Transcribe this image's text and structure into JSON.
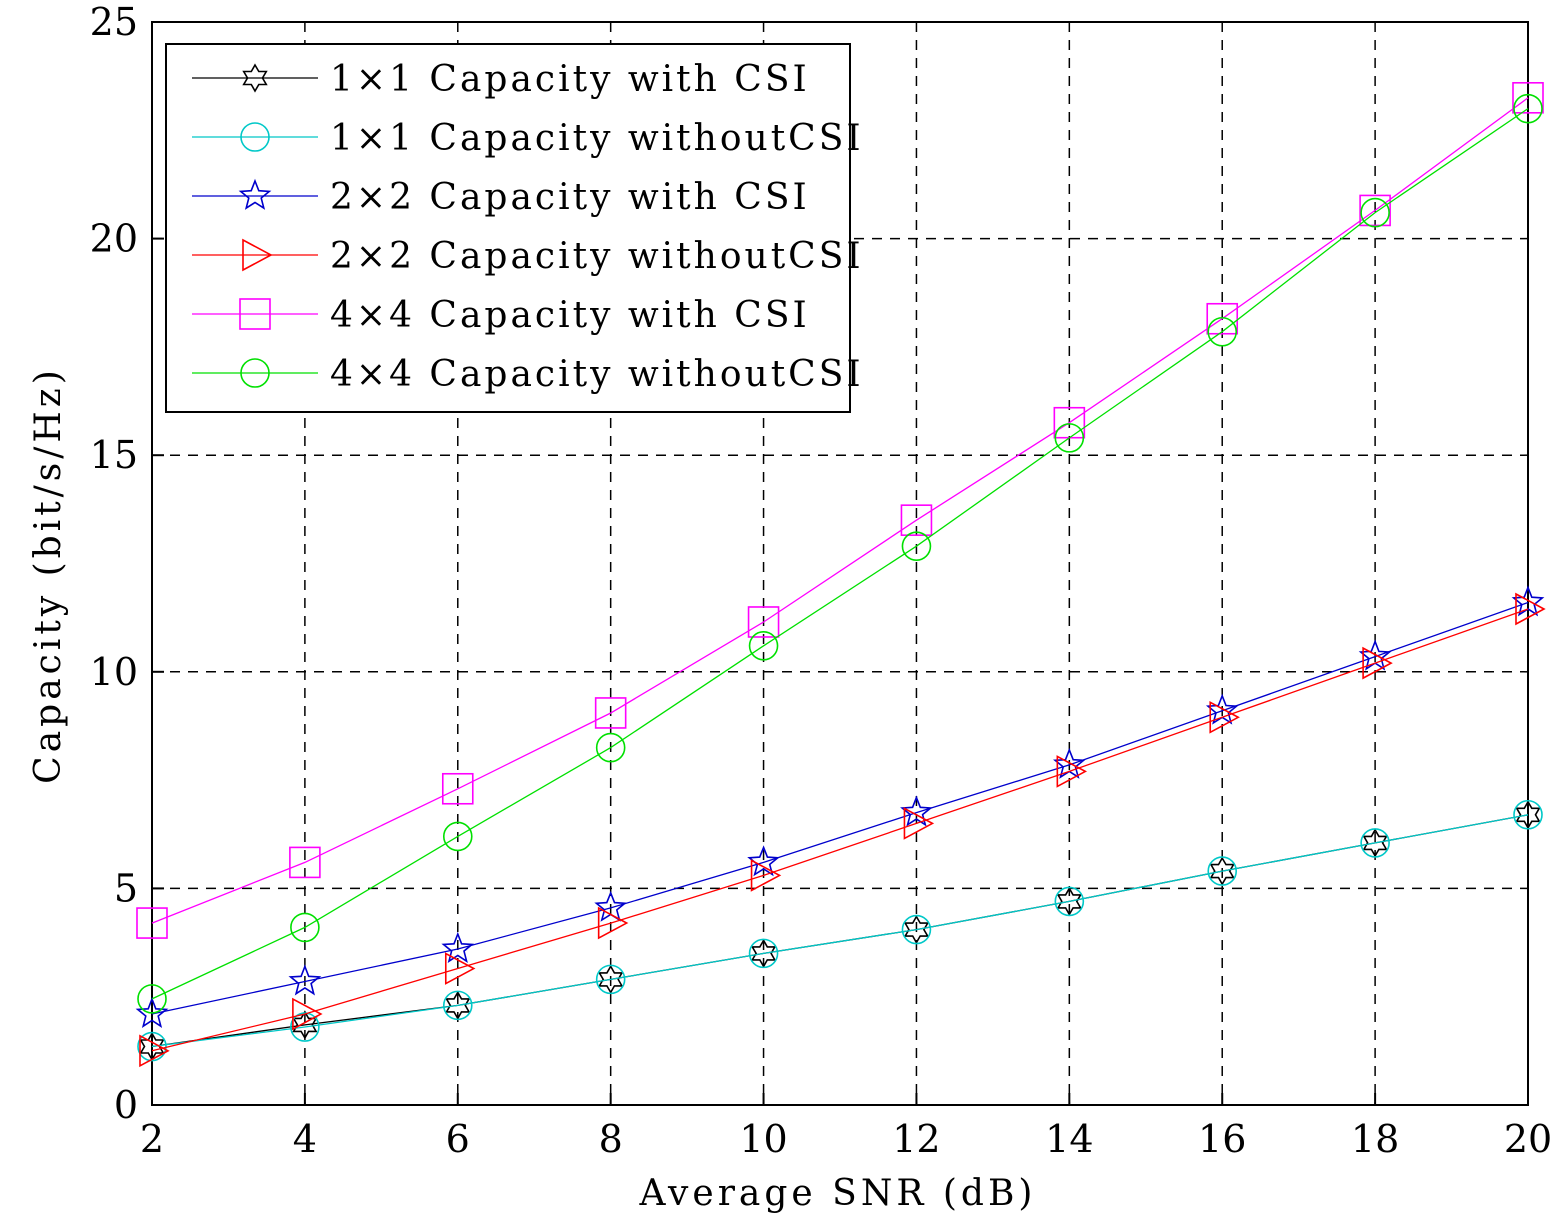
{
  "chart_data": {
    "type": "line",
    "title": "",
    "xlabel": "Average SNR (dB)",
    "ylabel": "Capacity (bit/s/Hz)",
    "xlim": [
      2,
      20
    ],
    "ylim": [
      0,
      25
    ],
    "xticks": [
      2,
      4,
      6,
      8,
      10,
      12,
      14,
      16,
      18,
      20
    ],
    "yticks": [
      0,
      5,
      10,
      15,
      20,
      25
    ],
    "grid": true,
    "legend_position": "top-left",
    "x": [
      2,
      4,
      6,
      8,
      10,
      12,
      14,
      16,
      18,
      20
    ],
    "series": [
      {
        "name": "1×1 Capacity with CSI",
        "color": "#000000",
        "marker": "hexagram",
        "values": [
          1.35,
          1.85,
          2.3,
          2.9,
          3.5,
          4.05,
          4.7,
          5.4,
          6.05,
          6.7
        ]
      },
      {
        "name": "1×1 Capacity withoutCSI",
        "color": "#00c8c8",
        "marker": "circle",
        "values": [
          1.35,
          1.8,
          2.3,
          2.9,
          3.5,
          4.05,
          4.7,
          5.4,
          6.05,
          6.7
        ]
      },
      {
        "name": "2×2 Capacity with CSI",
        "color": "#0000cc",
        "marker": "pentagram",
        "values": [
          2.1,
          2.85,
          3.6,
          4.55,
          5.6,
          6.75,
          7.85,
          9.1,
          10.35,
          11.6
        ]
      },
      {
        "name": "2×2 Capacity withoutCSI",
        "color": "#ff0000",
        "marker": "triangle-right",
        "values": [
          1.25,
          2.1,
          3.15,
          4.2,
          5.3,
          6.5,
          7.7,
          8.95,
          10.2,
          11.45
        ]
      },
      {
        "name": "4×4 Capacity with CSI",
        "color": "#ff00ff",
        "marker": "square",
        "values": [
          4.2,
          5.6,
          7.3,
          9.05,
          11.15,
          13.5,
          15.75,
          18.15,
          20.65,
          23.25
        ]
      },
      {
        "name": "4×4 Capacity withoutCSI",
        "color": "#00e000",
        "marker": "circle",
        "values": [
          2.45,
          4.1,
          6.2,
          8.25,
          10.6,
          12.9,
          15.4,
          17.85,
          20.6,
          23.0
        ]
      }
    ]
  }
}
